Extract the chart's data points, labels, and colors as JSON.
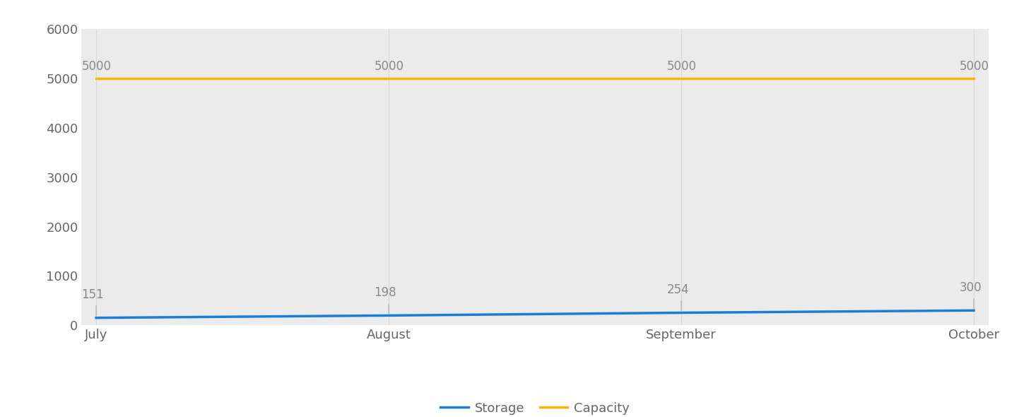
{
  "months": [
    "July",
    "August",
    "September",
    "October"
  ],
  "storage_values": [
    151,
    198,
    254,
    300
  ],
  "capacity_values": [
    5000,
    5000,
    5000,
    5000
  ],
  "storage_color": "#1a7fd4",
  "capacity_color": "#f5b800",
  "storage_label": "Storage",
  "capacity_label": "Capacity",
  "ylim": [
    0,
    6000
  ],
  "yticks": [
    0,
    1000,
    2000,
    3000,
    4000,
    5000,
    6000
  ],
  "plot_bg_color": "#ebebeb",
  "outer_bg_color": "#ffffff",
  "annotation_color": "#888888",
  "grid_color": "#d8d8d8",
  "line_width": 2.5,
  "annotation_fontsize": 12,
  "tick_fontsize": 13,
  "legend_fontsize": 13,
  "tick_color": "#666666"
}
